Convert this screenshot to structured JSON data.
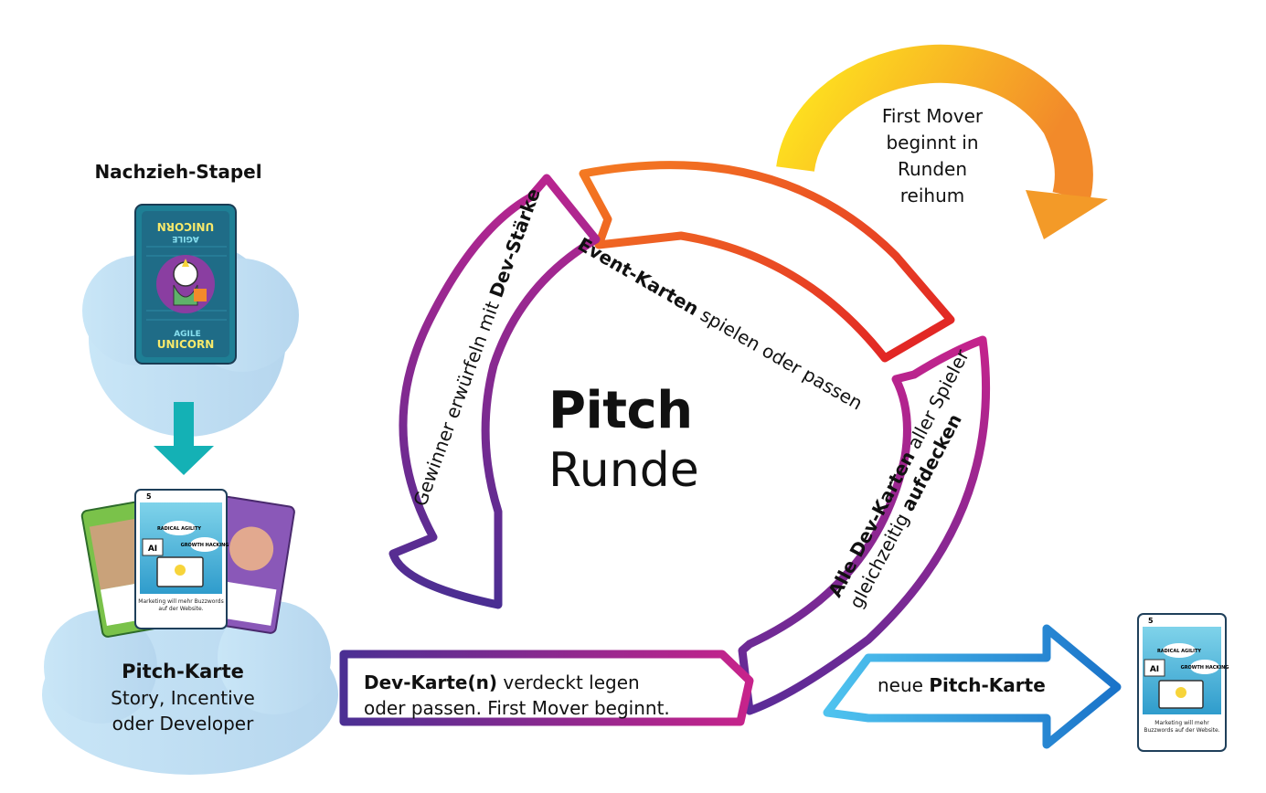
{
  "draw_pile": {
    "title": "Nachzieh-Stapel",
    "card_brand_line1": "AGILE",
    "card_brand_line2": "UNICORN"
  },
  "pitch_card": {
    "title": "Pitch-Karte",
    "line1": "Story, Incentive",
    "line2": "oder Developer",
    "card_value": "5",
    "buzz1": "RADICAL AGILITY",
    "buzz2": "GROWTH HACKING",
    "buzz3": "AI",
    "card_text": "Marketing will mehr Buzzwords auf der Website."
  },
  "center": {
    "title_bold": "Pitch",
    "title_regular": "Runde"
  },
  "first_mover": {
    "line1": "First Mover",
    "line2": "beginnt in Runden",
    "line3": "reihum"
  },
  "steps": {
    "event": {
      "bold": "Event-Karten",
      "text": " spielen oder passen"
    },
    "reveal": {
      "bold1": "Alle Dev-Karten",
      "text1": " aller Spieler",
      "text2": "gleichzeitig ",
      "bold2": "aufdecken"
    },
    "winner": {
      "text": "Gewinner erwürfeln mit ",
      "bold": "Dev-Stärke"
    },
    "dev": {
      "bold": "Dev-Karte(n)",
      "text1": " verdeckt legen",
      "text2": "oder passen. First Mover beginnt."
    },
    "new_pitch": {
      "text": "neue ",
      "bold": "Pitch-Karte"
    }
  },
  "colors": {
    "cloud": "#bcdcf0",
    "teal_arrow": "#14b1b5",
    "purple": "#6a2d96",
    "magenta": "#c2238d",
    "red": "#e42a2a",
    "orange": "#f07823",
    "yellow": "#ffd21e",
    "blue": "#1e7fd0"
  }
}
